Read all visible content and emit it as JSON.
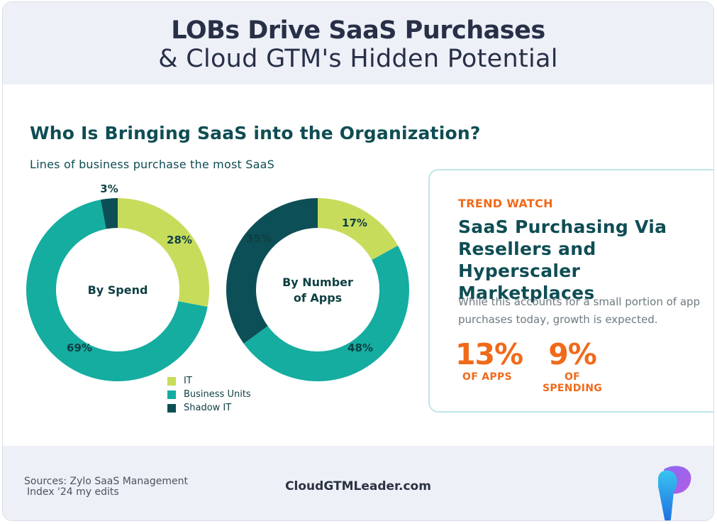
{
  "header": {
    "title_line1": "LOBs Drive SaaS Purchases",
    "title_line2": "& Cloud GTM's Hidden Potential"
  },
  "section": {
    "title": "Who Is Bringing SaaS into the Organization?",
    "subtitle": "Lines of business purchase the most SaaS"
  },
  "colors": {
    "it": "#c8dc5c",
    "business_units": "#14ada0",
    "shadow_it": "#0d4f56",
    "accent": "#f06a1a"
  },
  "chart_data": [
    {
      "type": "pie",
      "title": "By Spend",
      "categories": [
        "IT",
        "Business Units",
        "Shadow IT"
      ],
      "values": [
        28,
        69,
        3
      ],
      "labels": [
        "28%",
        "69%",
        "3%"
      ]
    },
    {
      "type": "pie",
      "title": "By Number of Apps",
      "title_lines": [
        "By Number",
        "of Apps"
      ],
      "categories": [
        "IT",
        "Business Units",
        "Shadow IT"
      ],
      "values": [
        17,
        48,
        35
      ],
      "labels": [
        "17%",
        "48%",
        "35%"
      ]
    }
  ],
  "legend": [
    {
      "label": "IT",
      "color": "#c8dc5c"
    },
    {
      "label": "Business Units",
      "color": "#14ada0"
    },
    {
      "label": "Shadow IT",
      "color": "#0d4f56"
    }
  ],
  "card": {
    "eyebrow": "TREND WATCH",
    "title": "SaaS Purchasing Via Resellers and Hyperscaler Marketplaces",
    "description": "While this accounts for a small portion of app purchases today, growth is expected.",
    "stats": [
      {
        "value": "13%",
        "label": "OF APPS"
      },
      {
        "value": "9%",
        "label": "OF SPENDING"
      }
    ]
  },
  "footer": {
    "sources_line1": "Sources: Zylo SaaS Management",
    "sources_line2": "Index '24 my edits",
    "brand": "CloudGTMLeader.com"
  }
}
